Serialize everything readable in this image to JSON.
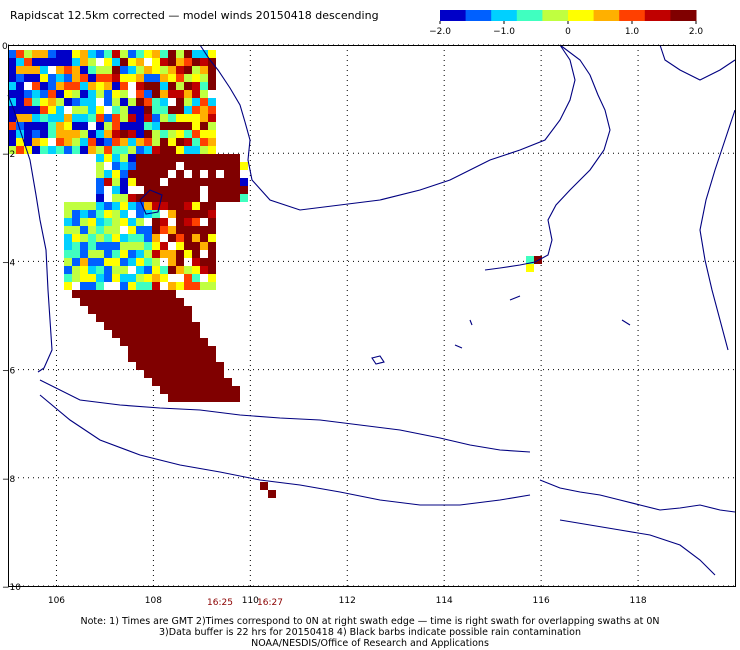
{
  "title": "Rapidscat 12.5km corrected — model winds 20150418 descending",
  "colorbar": {
    "ticks": [
      "−2.0",
      "−1.0",
      "0",
      "1.0",
      "2.0"
    ],
    "min": -2.0,
    "max": 2.0,
    "colors": [
      "#0000c8",
      "#0060ff",
      "#00d0ff",
      "#40ffc0",
      "#c0ff40",
      "#ffff00",
      "#ffb000",
      "#ff4000",
      "#c00000",
      "#800000"
    ]
  },
  "map": {
    "lon_range": [
      105,
      120
    ],
    "lat_range": [
      -10,
      0
    ],
    "x_ticks": [
      "106",
      "108",
      "110",
      "112",
      "114",
      "116",
      "118"
    ],
    "y_ticks": [
      "0",
      "−2",
      "−4",
      "−6",
      "−8",
      "−10"
    ],
    "coast_color": "#000080",
    "grid_color": "#000000"
  },
  "times": [
    "16:25",
    "16:27"
  ],
  "notes": [
    "Note: 1) Times are GMT 2)Times correspond to 0N at right swath edge — time is right swath for overlapping swaths at 0N",
    "3)Data buffer is 22 hrs for 20150418 4) Black barbs indicate possible rain contamination",
    "NOAA/NESDIS/Office of Research and Applications"
  ]
}
